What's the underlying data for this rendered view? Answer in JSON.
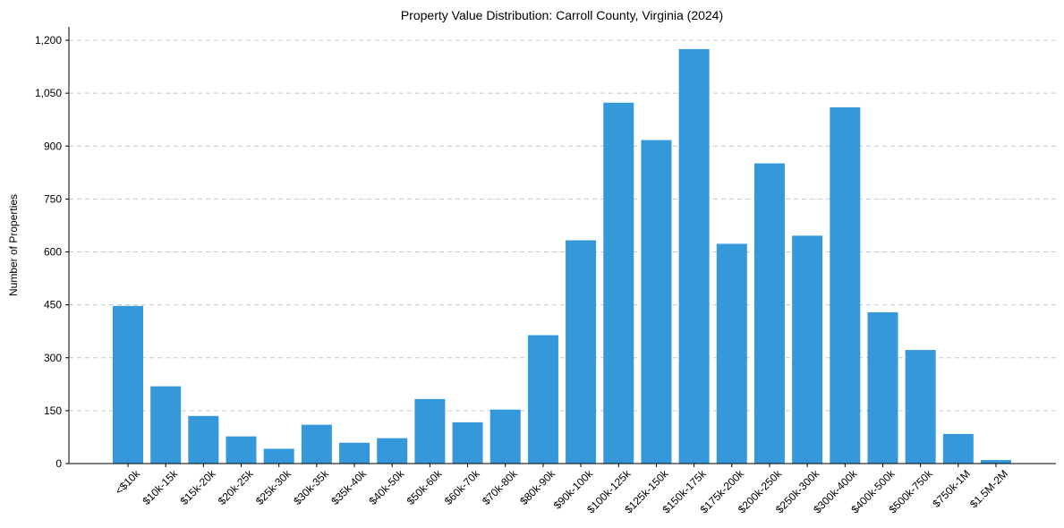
{
  "chart_data": {
    "type": "bar",
    "title": "Property Value Distribution: Carroll County, Virginia (2024)",
    "xlabel": "",
    "ylabel": "Number of Properties",
    "categories": [
      "<$10k",
      "$10k-15k",
      "$15k-20k",
      "$20k-25k",
      "$25k-30k",
      "$30k-35k",
      "$35k-40k",
      "$40k-50k",
      "$50k-60k",
      "$60k-70k",
      "$70k-80k",
      "$80k-90k",
      "$90k-100k",
      "$100k-125k",
      "$125k-150k",
      "$150k-175k",
      "$175k-200k",
      "$200k-250k",
      "$250k-300k",
      "$300k-400k",
      "$400k-500k",
      "$500k-750k",
      "$750k-1M",
      "$1.5M-2M"
    ],
    "values": [
      447,
      219,
      135,
      77,
      42,
      110,
      59,
      72,
      183,
      117,
      153,
      364,
      633,
      1023,
      917,
      1175,
      623,
      851,
      646,
      1010,
      429,
      322,
      84,
      10
    ],
    "ylim": [
      0,
      1200
    ],
    "yticks": [
      0,
      150,
      300,
      450,
      600,
      750,
      900,
      1050,
      1200
    ],
    "ytick_labels": [
      "0",
      "150",
      "300",
      "450",
      "600",
      "750",
      "900",
      "1,050",
      "1,200"
    ],
    "grid": "y",
    "bar_color": "#3498db",
    "legend": "none"
  }
}
